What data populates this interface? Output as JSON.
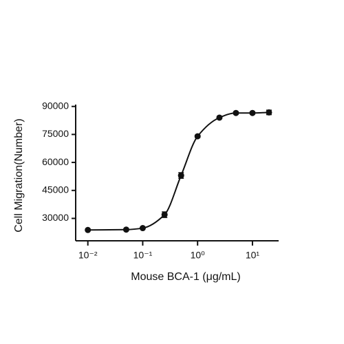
{
  "chart_data": {
    "type": "scatter",
    "x_label": "Mouse BCA-1 (μg/mL)",
    "y_label": "Cell Migration(Number)",
    "x": [
      0.01,
      0.05,
      0.1,
      0.25,
      0.5,
      1,
      2.5,
      5,
      10,
      20
    ],
    "values": [
      23800,
      24000,
      24800,
      32000,
      53000,
      74000,
      84000,
      86500,
      86500,
      86800
    ],
    "errors": [
      300,
      400,
      500,
      1500,
      1500,
      600,
      600,
      600,
      600,
      1200
    ],
    "color": "#111111",
    "x_log": true,
    "xlim": [
      0.006,
      30
    ],
    "xticks": [
      {
        "value": 0.01,
        "label": "10⁻²"
      },
      {
        "value": 0.1,
        "label": "10⁻¹"
      },
      {
        "value": 1,
        "label": "10⁰"
      },
      {
        "value": 10,
        "label": "10¹"
      }
    ],
    "ylim": [
      18000,
      91000
    ],
    "yticks": [
      30000,
      45000,
      60000,
      75000,
      90000
    ],
    "grid": false
  }
}
